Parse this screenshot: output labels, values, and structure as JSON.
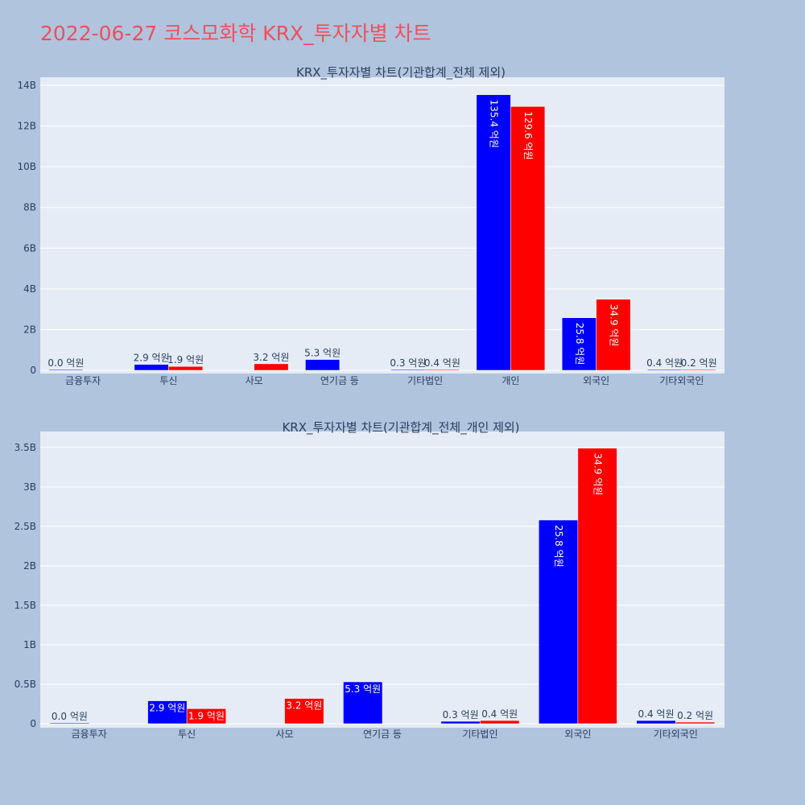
{
  "page": {
    "title": "2022-06-27 코스모화학 KRX_투자자별 차트",
    "title_color": "#ef4f5c",
    "background": "#b0c4de",
    "plot_background": "#e5ecf6"
  },
  "chart_data": [
    {
      "type": "bar",
      "title": "KRX_투자자별 차트(기관합계_전체 제외)",
      "categories": [
        "금융투자",
        "투신",
        "사모",
        "연기금 등",
        "기타법인",
        "개인",
        "외국인",
        "기타외국인"
      ],
      "ylim": [
        0,
        14
      ],
      "yticks": [
        0,
        2,
        4,
        6,
        8,
        10,
        12,
        14
      ],
      "ytick_labels": [
        "0",
        "2B",
        "4B",
        "6B",
        "8B",
        "10B",
        "12B",
        "14B"
      ],
      "series": [
        {
          "color": "#0000ff",
          "values": [
            0.0,
            0.29,
            null,
            0.53,
            0.03,
            13.54,
            2.58,
            0.04
          ],
          "labels": [
            "0.0 억원",
            "2.9 억원",
            null,
            "5.3 억원",
            "0.3 억원",
            "135.4 억원",
            "25.8 억원",
            "0.4 억원"
          ]
        },
        {
          "color": "#ff0000",
          "values": [
            null,
            0.19,
            0.32,
            null,
            0.04,
            12.96,
            3.49,
            0.02
          ],
          "labels": [
            null,
            "1.9 억원",
            "3.2 억원",
            null,
            "0.4 억원",
            "129.6 억원",
            "34.9 억원",
            "0.2 억원"
          ]
        }
      ],
      "grid": true
    },
    {
      "type": "bar",
      "title": "KRX_투자자별 차트(기관합계_전체_개인 제외)",
      "categories": [
        "금융투자",
        "투신",
        "사모",
        "연기금 등",
        "기타법인",
        "외국인",
        "기타외국인"
      ],
      "ylim": [
        0,
        3.6
      ],
      "yticks": [
        0,
        0.5,
        1,
        1.5,
        2,
        2.5,
        3,
        3.5
      ],
      "ytick_labels": [
        "0",
        "0.5B",
        "1B",
        "1.5B",
        "2B",
        "2.5B",
        "3B",
        "3.5B"
      ],
      "series": [
        {
          "color": "#0000ff",
          "values": [
            0.0,
            0.29,
            null,
            0.53,
            0.03,
            2.58,
            0.04
          ],
          "labels": [
            "0.0 억원",
            "2.9 억원",
            null,
            "5.3 억원",
            "0.3 억원",
            "25.8 억원",
            "0.4 억원"
          ]
        },
        {
          "color": "#ff0000",
          "values": [
            null,
            0.19,
            0.32,
            null,
            0.04,
            3.49,
            0.02
          ],
          "labels": [
            null,
            "1.9 억원",
            "3.2 억원",
            null,
            "0.4 억원",
            "34.9 억원",
            "0.2 억원"
          ]
        }
      ],
      "grid": true
    }
  ]
}
